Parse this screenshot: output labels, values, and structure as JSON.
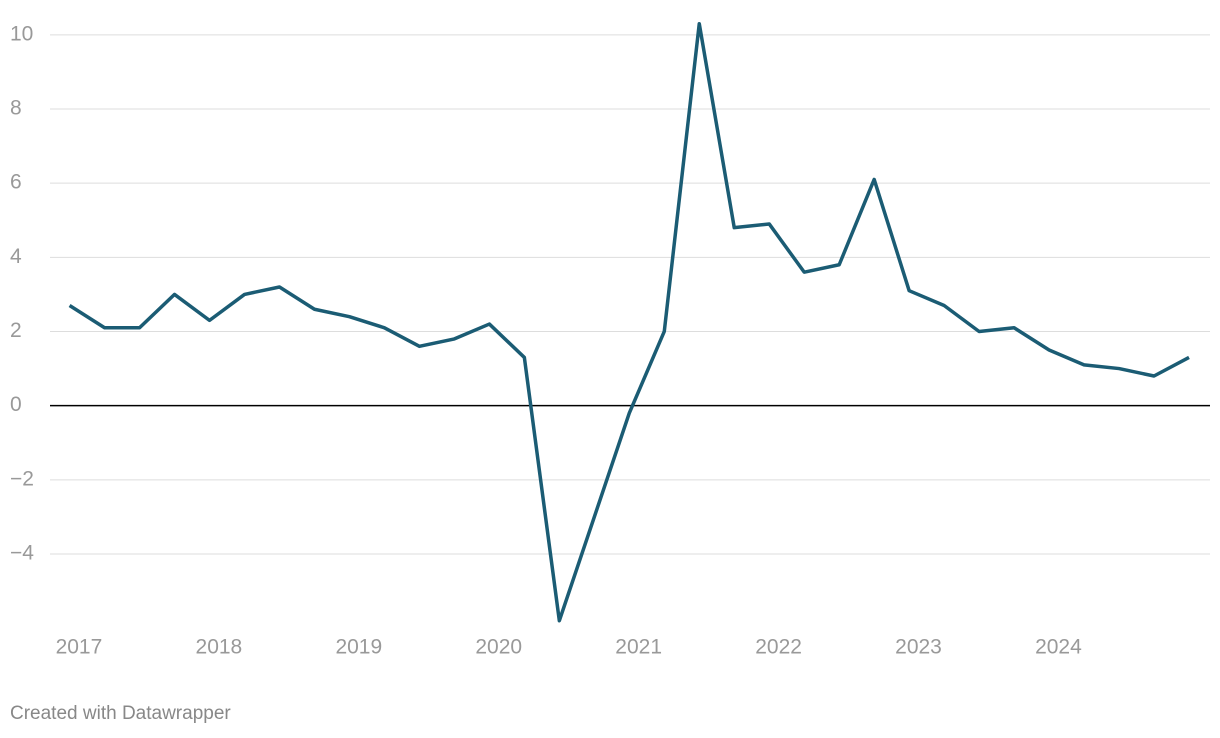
{
  "chart_data": {
    "type": "line",
    "x": [
      2017,
      2017.25,
      2017.5,
      2017.75,
      2018,
      2018.25,
      2018.5,
      2018.75,
      2019,
      2019.25,
      2019.5,
      2019.75,
      2020,
      2020.25,
      2020.5,
      2020.75,
      2021,
      2021.25,
      2021.5,
      2021.75,
      2022,
      2022.25,
      2022.5,
      2022.75,
      2023,
      2023.25,
      2023.5,
      2023.75,
      2024,
      2024.25,
      2024.5,
      2024.75,
      2025
    ],
    "series": [
      {
        "color": "#1b5c74",
        "values": [
          2.7,
          2.1,
          2.1,
          3.0,
          2.3,
          3.0,
          3.2,
          2.6,
          2.4,
          2.1,
          1.6,
          1.8,
          2.2,
          1.3,
          -5.8,
          -3.0,
          -0.2,
          2.0,
          10.3,
          4.8,
          4.9,
          3.6,
          3.8,
          6.1,
          3.1,
          2.7,
          2.0,
          2.1,
          1.5,
          1.1,
          1.0,
          0.8,
          1.3
        ]
      }
    ],
    "xlim": [
      2016.86,
      2025.15
    ],
    "xticks": [
      2017,
      2018,
      2019,
      2020,
      2021,
      2022,
      2023,
      2024
    ],
    "ylim": [
      -6.05,
      10.4
    ],
    "yticks": [
      {
        "value": -4,
        "label": "−4"
      },
      {
        "value": -2,
        "label": "−2"
      },
      0,
      2,
      4,
      6,
      8,
      10
    ],
    "grid": true,
    "footer": "Created with Datawrapper"
  }
}
